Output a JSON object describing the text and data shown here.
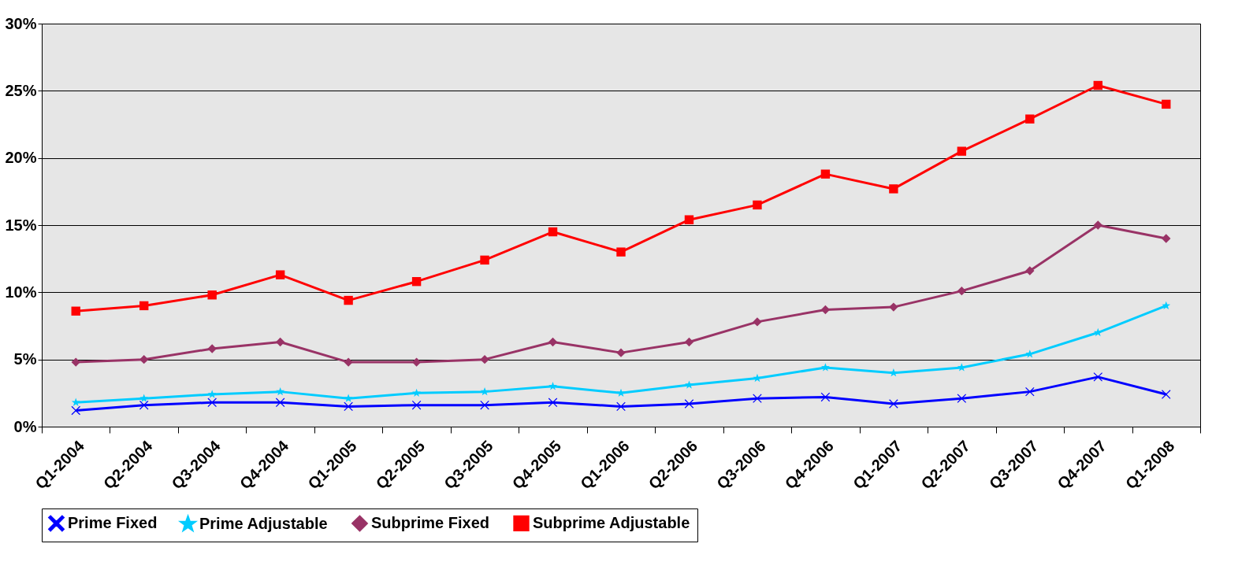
{
  "chart_data": {
    "type": "line",
    "categories": [
      "Q1-2004",
      "Q2-2004",
      "Q3-2004",
      "Q4-2004",
      "Q1-2005",
      "Q2-2005",
      "Q3-2005",
      "Q4-2005",
      "Q1-2006",
      "Q2-2006",
      "Q3-2006",
      "Q4-2006",
      "Q1-2007",
      "Q2-2007",
      "Q3-2007",
      "Q4-2007",
      "Q1-2008"
    ],
    "series": [
      {
        "name": "Prime Fixed",
        "color": "#0000ff",
        "marker": "cross",
        "values": [
          1.2,
          1.6,
          1.8,
          1.8,
          1.5,
          1.6,
          1.6,
          1.8,
          1.5,
          1.7,
          2.1,
          2.2,
          1.7,
          2.1,
          2.6,
          3.7,
          2.4
        ]
      },
      {
        "name": "Prime Adjustable",
        "color": "#00ccff",
        "marker": "star",
        "values": [
          1.8,
          2.1,
          2.4,
          2.6,
          2.1,
          2.5,
          2.6,
          3.0,
          2.5,
          3.1,
          3.6,
          4.4,
          4.0,
          4.4,
          5.4,
          7.0,
          9.0
        ]
      },
      {
        "name": "Subprime Fixed",
        "color": "#993366",
        "marker": "diamond",
        "values": [
          4.8,
          5.0,
          5.8,
          6.3,
          4.8,
          4.8,
          5.0,
          6.3,
          5.5,
          6.3,
          7.8,
          8.7,
          8.9,
          10.1,
          11.6,
          15.0,
          14.0
        ]
      },
      {
        "name": "Subprime Adjustable",
        "color": "#ff0000",
        "marker": "square",
        "values": [
          8.6,
          9.0,
          9.8,
          11.3,
          9.4,
          10.8,
          12.4,
          14.5,
          13.0,
          15.4,
          16.5,
          18.8,
          17.7,
          20.5,
          22.9,
          25.4,
          24.0
        ]
      }
    ],
    "ylim": [
      0,
      30
    ],
    "yticks": [
      {
        "value": 0,
        "label": "0%"
      },
      {
        "value": 5,
        "label": "5%"
      },
      {
        "value": 10,
        "label": "10%"
      },
      {
        "value": 15,
        "label": "15%"
      },
      {
        "value": 20,
        "label": "20%"
      },
      {
        "value": 25,
        "label": "25%"
      },
      {
        "value": 30,
        "label": "30%"
      }
    ],
    "grid": "y",
    "legend": "bottom"
  }
}
